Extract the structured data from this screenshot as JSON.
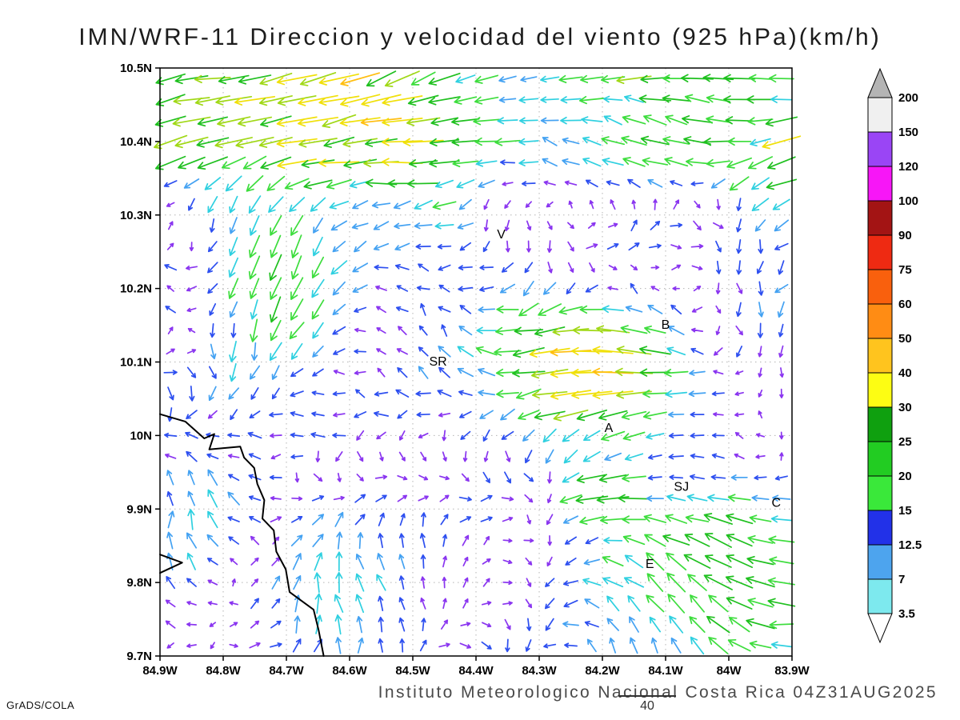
{
  "title": "IMN/WRF-11 Direccion y velocidad del viento (925 hPa)(km/h)",
  "credit": "GrADS/COLA",
  "footer_text": "Instituto Meteorologico Nacional Costa Rica 04Z31AUG2025",
  "chart_data": {
    "type": "vector_field",
    "title": "IMN/WRF-11 Direccion y velocidad del viento (925 hPa)(km/h)",
    "model": "IMN/WRF-11",
    "level": "925 hPa",
    "units": "km/h",
    "valid_time": "04Z31AUG2025",
    "x_axis": {
      "ticks": [
        "84.9W",
        "84.8W",
        "84.7W",
        "84.6W",
        "84.5W",
        "84.4W",
        "84.3W",
        "84.2W",
        "84.1W",
        "84W",
        "83.9W"
      ],
      "lon_west_range": [
        84.9,
        83.9
      ]
    },
    "y_axis": {
      "ticks": [
        "10.5N",
        "10.4N",
        "10.3N",
        "10.2N",
        "10.1N",
        "10N",
        "9.9N",
        "9.8N",
        "9.7N"
      ],
      "lat_north_range": [
        9.7,
        10.5
      ]
    },
    "grid": {
      "style": "dotted",
      "color": "#b3b3b3",
      "interval_deg": 0.1
    },
    "colorbar": {
      "units": "km/h",
      "labels": [
        "3.5",
        "7",
        "12.5",
        "15",
        "20",
        "25",
        "30",
        "40",
        "50",
        "60",
        "75",
        "90",
        "100",
        "120",
        "150",
        "200"
      ],
      "segment_colors_bottom_to_top": [
        "#7de9ee",
        "#4da4ee",
        "#2231e8",
        "#3ae83a",
        "#22cc22",
        "#0fa00f",
        "#fdfd13",
        "#ffc41e",
        "#ff8c14",
        "#f9600d",
        "#ee2a12",
        "#a31414",
        "#f716f7",
        "#9a45f5",
        "#f0f0f0"
      ],
      "below_min_color": "#ffffff",
      "above_max_color": "#b4b4b4"
    },
    "reference_vector": {
      "speed_label": "40"
    },
    "stations": [
      {
        "label": "V",
        "lon": 84.36,
        "lat": 10.268
      },
      {
        "label": "B",
        "lon": 84.1,
        "lat": 10.145
      },
      {
        "label": "SR",
        "lon": 84.46,
        "lat": 10.095
      },
      {
        "label": "A",
        "lon": 84.19,
        "lat": 10.005
      },
      {
        "label": "SJ",
        "lon": 84.075,
        "lat": 9.925
      },
      {
        "label": "C",
        "lon": 83.925,
        "lat": 9.903
      },
      {
        "label": "E",
        "lon": 84.125,
        "lat": 9.82
      }
    ],
    "coastline_lonlat": [
      [
        [
          84.9,
          10.029
        ],
        [
          84.86,
          10.019
        ],
        [
          84.83,
          9.996
        ],
        [
          84.814,
          10.002
        ],
        [
          84.822,
          9.981
        ],
        [
          84.773,
          9.985
        ],
        [
          84.767,
          9.97
        ],
        [
          84.751,
          9.956
        ],
        [
          84.746,
          9.934
        ],
        [
          84.735,
          9.912
        ],
        [
          84.738,
          9.887
        ],
        [
          84.72,
          9.871
        ],
        [
          84.716,
          9.842
        ],
        [
          84.701,
          9.818
        ],
        [
          84.695,
          9.787
        ],
        [
          84.657,
          9.763
        ],
        [
          84.649,
          9.735
        ],
        [
          84.641,
          9.7
        ]
      ],
      [
        [
          84.9,
          9.838
        ],
        [
          84.865,
          9.827
        ],
        [
          84.9,
          9.813
        ]
      ]
    ],
    "wind_field": {
      "description": "Dense lat-lon grid of wind vectors colored by speed (km/h). Strong easterly flow (arrows pointing west; cyan-green-yellow, ~12-35 km/h) across the northern band above ~10.33N. Weak variable winds (purple-blue-cyan, <12 km/h) over most of the interior and the southwest coast (arrows pointing north over the Gulf area). A strong patch (gold-orange-red, ~40-75 km/h) near 84.15W/10.1N east of SR toward B. Green south-westward patch (~15-25 km/h) near 84.75W/10.25N. Green-yellow west/northwest flow (~15-35 km/h) in the southeast corner around SJ, C and E.",
      "grid": {
        "nx": 30,
        "ny": 28
      },
      "seed": 20250831
    }
  }
}
